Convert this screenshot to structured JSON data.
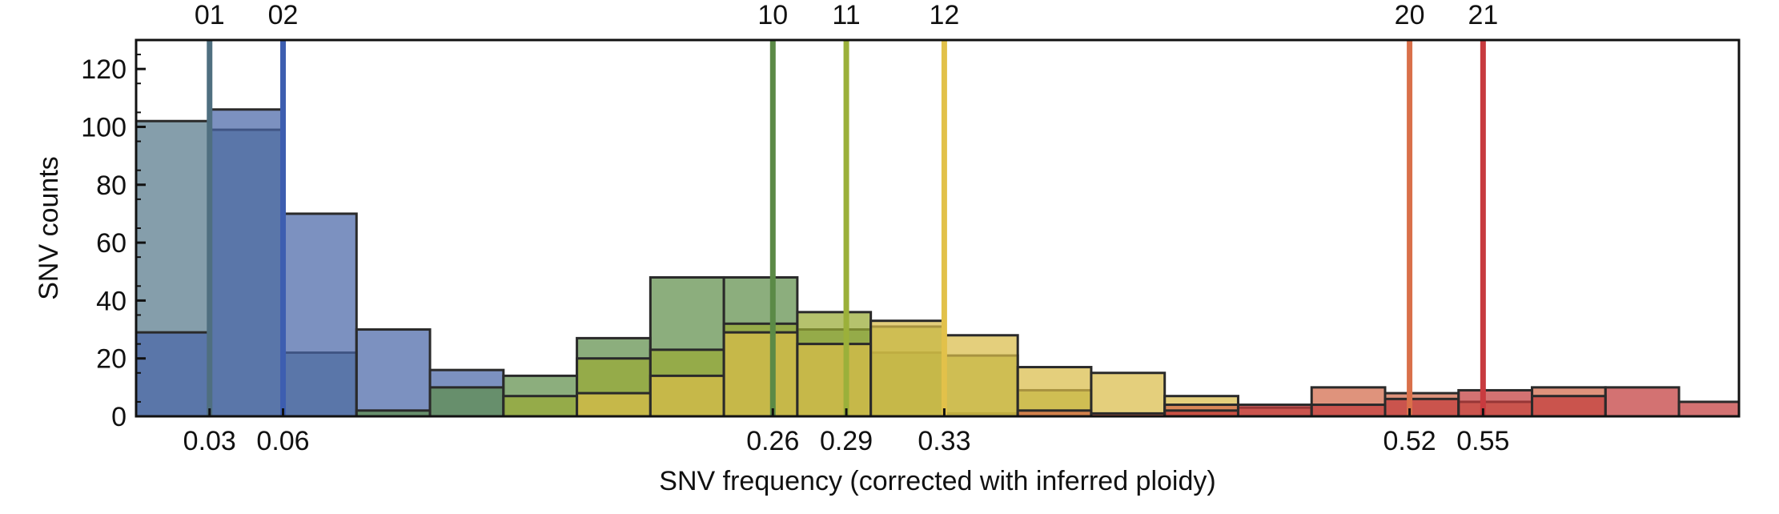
{
  "chart_data": {
    "type": "bar",
    "title": "",
    "xlabel": "SNV frequency (corrected with inferred ploidy)",
    "ylabel": "SNV counts",
    "ylim": [
      0,
      130
    ],
    "yticks": [
      0,
      20,
      40,
      60,
      80,
      100,
      120
    ],
    "xlim": [
      0.0,
      0.6545
    ],
    "bin_width": 0.03,
    "bin_starts": [
      0.0,
      0.03,
      0.06,
      0.09,
      0.12,
      0.15,
      0.18,
      0.21,
      0.24,
      0.27,
      0.3,
      0.33,
      0.36,
      0.39,
      0.42,
      0.45,
      0.48,
      0.51,
      0.54,
      0.57,
      0.6,
      0.63
    ],
    "series": [
      {
        "id": "01",
        "color": "#56788a",
        "values": [
          102,
          99,
          22,
          0,
          0,
          0,
          0,
          0,
          0,
          0,
          0,
          0,
          0,
          0,
          0,
          0,
          0,
          0,
          0,
          0,
          0,
          0
        ]
      },
      {
        "id": "02",
        "color": "#4a66a8",
        "values": [
          29,
          106,
          70,
          30,
          16,
          0,
          0,
          0,
          0,
          0,
          0,
          0,
          0,
          0,
          0,
          0,
          0,
          0,
          0,
          0,
          0,
          0
        ]
      },
      {
        "id": "10",
        "color": "#5f8f4b",
        "values": [
          0,
          0,
          0,
          2,
          10,
          14,
          27,
          48,
          48,
          30,
          22,
          1,
          0,
          0,
          0,
          0,
          0,
          0,
          0,
          0,
          0,
          0
        ]
      },
      {
        "id": "11",
        "color": "#98ab35",
        "values": [
          0,
          0,
          0,
          0,
          0,
          7,
          20,
          23,
          32,
          36,
          31,
          21,
          9,
          0,
          0,
          0,
          0,
          0,
          0,
          0,
          0,
          0
        ]
      },
      {
        "id": "12",
        "color": "#d9bd4a",
        "values": [
          0,
          0,
          0,
          0,
          0,
          0,
          8,
          14,
          29,
          25,
          33,
          28,
          17,
          15,
          7,
          0,
          0,
          0,
          0,
          0,
          0,
          0
        ]
      },
      {
        "id": "20",
        "color": "#d2694a",
        "values": [
          0,
          0,
          0,
          0,
          0,
          0,
          0,
          0,
          0,
          0,
          0,
          0,
          2,
          0,
          4,
          3,
          10,
          8,
          5,
          10,
          0,
          0
        ]
      },
      {
        "id": "21",
        "color": "#c23b3b",
        "values": [
          0,
          0,
          0,
          0,
          0,
          0,
          0,
          0,
          0,
          0,
          0,
          0,
          0,
          1,
          2,
          4,
          4,
          6,
          9,
          7,
          10,
          5
        ]
      }
    ],
    "markers": [
      {
        "label": "01",
        "x": 0.03,
        "tick": "0.03",
        "color": "#4f6f80"
      },
      {
        "label": "02",
        "x": 0.06,
        "tick": "0.06",
        "color": "#3d5eb0"
      },
      {
        "label": "10",
        "x": 0.26,
        "tick": "0.26",
        "color": "#5b8a46"
      },
      {
        "label": "11",
        "x": 0.29,
        "tick": "0.29",
        "color": "#9bb03a"
      },
      {
        "label": "12",
        "x": 0.33,
        "tick": "0.33",
        "color": "#e2c14a"
      },
      {
        "label": "20",
        "x": 0.52,
        "tick": "0.52",
        "color": "#d9704a"
      },
      {
        "label": "21",
        "x": 0.55,
        "tick": "0.55",
        "color": "#c83b3f"
      }
    ],
    "grid": false,
    "legend": "none"
  }
}
